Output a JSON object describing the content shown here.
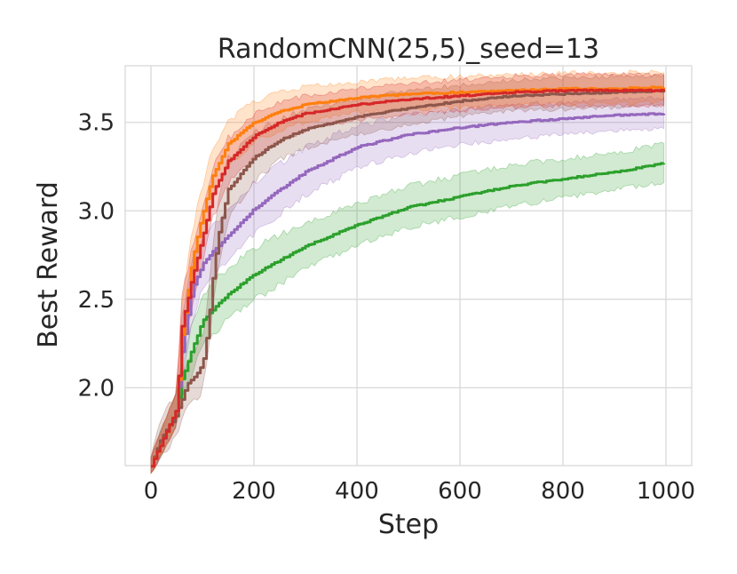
{
  "chart_data": {
    "type": "line",
    "title": "RandomCNN(25,5)_seed=13",
    "xlabel": "Step",
    "ylabel": "Best Reward",
    "xlim": [
      -50,
      1050
    ],
    "ylim": [
      1.56,
      3.82
    ],
    "xticks": [
      0,
      200,
      400,
      600,
      800,
      1000
    ],
    "xtick_labels": [
      "0",
      "200",
      "400",
      "600",
      "800",
      "1000"
    ],
    "yticks": [
      2.0,
      2.5,
      3.0,
      3.5
    ],
    "ytick_labels": [
      "2.0",
      "2.5",
      "3.0",
      "3.5"
    ],
    "grid": true,
    "legend": false,
    "series": [
      {
        "color": "#2ca02c",
        "x": [
          0,
          50,
          60,
          100,
          150,
          200,
          300,
          400,
          500,
          600,
          700,
          800,
          900,
          1000
        ],
        "y": [
          1.56,
          1.88,
          2.05,
          2.38,
          2.53,
          2.64,
          2.8,
          2.92,
          3.02,
          3.08,
          3.14,
          3.18,
          3.22,
          3.27
        ],
        "spread": [
          0.05,
          0.1,
          0.12,
          0.15,
          0.15,
          0.15,
          0.13,
          0.12,
          0.12,
          0.12,
          0.12,
          0.11,
          0.11,
          0.11
        ]
      },
      {
        "color": "#9467bd",
        "x": [
          0,
          50,
          60,
          80,
          100,
          120,
          150,
          200,
          250,
          300,
          400,
          500,
          600,
          700,
          800,
          900,
          1000
        ],
        "y": [
          1.56,
          1.88,
          2.2,
          2.55,
          2.7,
          2.77,
          2.86,
          3.01,
          3.12,
          3.22,
          3.36,
          3.43,
          3.47,
          3.5,
          3.52,
          3.54,
          3.55
        ],
        "spread": [
          0.05,
          0.1,
          0.18,
          0.17,
          0.16,
          0.15,
          0.15,
          0.15,
          0.15,
          0.14,
          0.12,
          0.11,
          0.1,
          0.1,
          0.09,
          0.09,
          0.09
        ]
      },
      {
        "color": "#8c564b",
        "x": [
          0,
          20,
          40,
          50,
          70,
          90,
          100,
          110,
          120,
          130,
          150,
          200,
          250,
          300,
          400,
          500,
          600,
          700,
          800,
          900,
          1000
        ],
        "y": [
          1.56,
          1.72,
          1.8,
          1.85,
          2.02,
          2.08,
          2.13,
          2.32,
          2.62,
          2.85,
          3.12,
          3.3,
          3.4,
          3.46,
          3.53,
          3.58,
          3.62,
          3.65,
          3.66,
          3.67,
          3.68
        ],
        "spread": [
          0.05,
          0.12,
          0.12,
          0.12,
          0.13,
          0.14,
          0.15,
          0.17,
          0.18,
          0.18,
          0.17,
          0.14,
          0.12,
          0.11,
          0.1,
          0.1,
          0.09,
          0.09,
          0.09,
          0.09,
          0.09
        ]
      },
      {
        "color": "#ff7f0e",
        "x": [
          0,
          50,
          60,
          80,
          100,
          120,
          150,
          200,
          250,
          300,
          400,
          500,
          600,
          700,
          800,
          900,
          1000
        ],
        "y": [
          1.56,
          1.88,
          2.3,
          2.72,
          2.98,
          3.2,
          3.38,
          3.5,
          3.56,
          3.6,
          3.64,
          3.66,
          3.67,
          3.68,
          3.69,
          3.69,
          3.7
        ],
        "spread": [
          0.05,
          0.1,
          0.18,
          0.17,
          0.16,
          0.15,
          0.13,
          0.12,
          0.11,
          0.1,
          0.09,
          0.09,
          0.09,
          0.09,
          0.09,
          0.09,
          0.09
        ]
      },
      {
        "color": "#d62728",
        "x": [
          0,
          50,
          60,
          80,
          100,
          120,
          150,
          200,
          250,
          300,
          400,
          500,
          600,
          700,
          800,
          900,
          1000
        ],
        "y": [
          1.56,
          1.88,
          2.35,
          2.62,
          2.85,
          3.1,
          3.28,
          3.42,
          3.5,
          3.55,
          3.6,
          3.63,
          3.65,
          3.67,
          3.68,
          3.68,
          3.68
        ],
        "spread": [
          0.05,
          0.1,
          0.18,
          0.17,
          0.16,
          0.15,
          0.13,
          0.12,
          0.11,
          0.1,
          0.09,
          0.09,
          0.09,
          0.09,
          0.09,
          0.09,
          0.09
        ]
      }
    ]
  }
}
